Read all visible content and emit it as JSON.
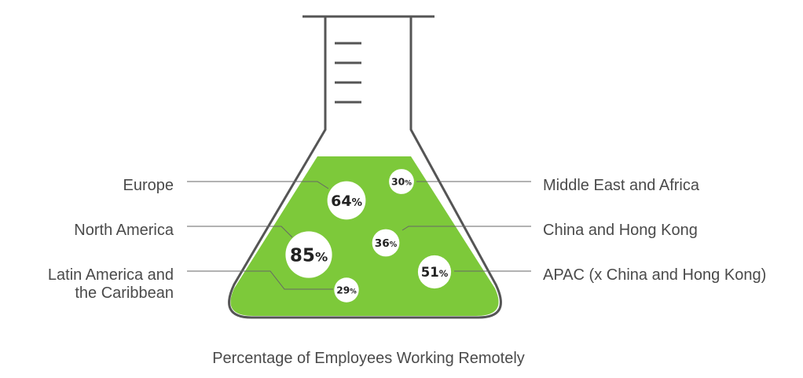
{
  "chart_data": {
    "type": "bubble",
    "title": "",
    "caption": "Percentage of Employees Working Remotely",
    "unit": "%",
    "regions": [
      {
        "name": "Europe",
        "value": 64
      },
      {
        "name": "North America",
        "value": 85
      },
      {
        "name": "Latin America and the Caribbean",
        "name_lines": [
          "Latin America and",
          "the Caribbean"
        ],
        "value": 29
      },
      {
        "name": "Middle East and Africa",
        "value": 30
      },
      {
        "name": "China and Hong Kong",
        "value": 36
      },
      {
        "name": "APAC (x China and Hong Kong)",
        "value": 51
      }
    ]
  },
  "colors": {
    "liquid": "#7dc93a",
    "glass_outline": "#555555",
    "bubble": "#ffffff",
    "text": "#4a4a4a",
    "leader": "#666666"
  }
}
